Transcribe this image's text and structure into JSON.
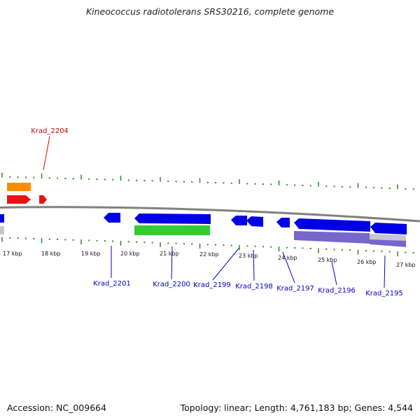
{
  "header": {
    "title": "Kineococcus radiotolerans SRS30216, complete genome"
  },
  "footer": {
    "accession": "Accession: NC_009664",
    "summary": "Topology: linear; Length: 4,761,183 bp; Genes: 4,544"
  },
  "colors": {
    "label_blue": "#0000cc",
    "label_red": "#cc0000",
    "tick_green": "#228b22",
    "axis_gray": "#808080",
    "gene_blue": "#0000e6",
    "gene_red": "#ee1111",
    "gene_orange": "#ff8c00",
    "gene_green": "#33cc33",
    "gene_purple": "#7766cc",
    "gene_gray": "#c8c8c8"
  },
  "axis": {
    "kbp_labels": [
      "17 kbp",
      "18 kbp",
      "19 kbp",
      "20 kbp",
      "21 kbp",
      "22 kbp",
      "23 kbp",
      "24 kbp",
      "25 kbp",
      "26 kbp",
      "27 kbp"
    ]
  },
  "genes": {
    "top": [
      "Krad_2204"
    ],
    "bottom": [
      "Krad_2201",
      "Krad_2200",
      "Krad_2199",
      "Krad_2198",
      "Krad_2197",
      "Krad_2196",
      "Krad_2195"
    ]
  }
}
